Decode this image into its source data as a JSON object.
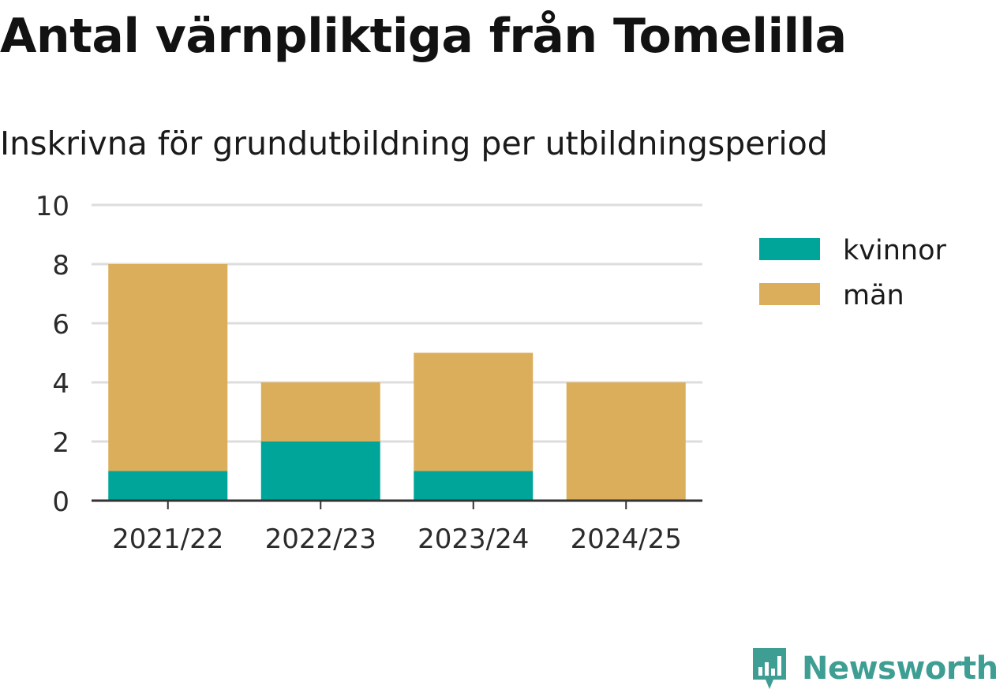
{
  "header": {
    "title": "Antal värnpliktiga från Tomelilla",
    "subtitle": "Inskrivna för grundutbildning per utbildningsperiod"
  },
  "logo": {
    "brand": "Newsworthy",
    "icon": "bar-chart-speech-bubble-icon",
    "color": "#3f9e93"
  },
  "chart_data": {
    "type": "bar",
    "stacked": true,
    "title": "Antal värnpliktiga från Tomelilla",
    "subtitle": "Inskrivna för grundutbildning per utbildningsperiod",
    "categories": [
      "2021/22",
      "2022/23",
      "2023/24",
      "2024/25"
    ],
    "series": [
      {
        "name": "kvinnor",
        "color": "#00a599",
        "values": [
          1,
          2,
          1,
          0
        ]
      },
      {
        "name": "män",
        "color": "#dbae5c",
        "values": [
          7,
          2,
          4,
          4
        ]
      }
    ],
    "ylim": [
      0,
      10
    ],
    "yticks": [
      0,
      2,
      4,
      6,
      8,
      10
    ],
    "grid": true,
    "legend_position": "right"
  }
}
